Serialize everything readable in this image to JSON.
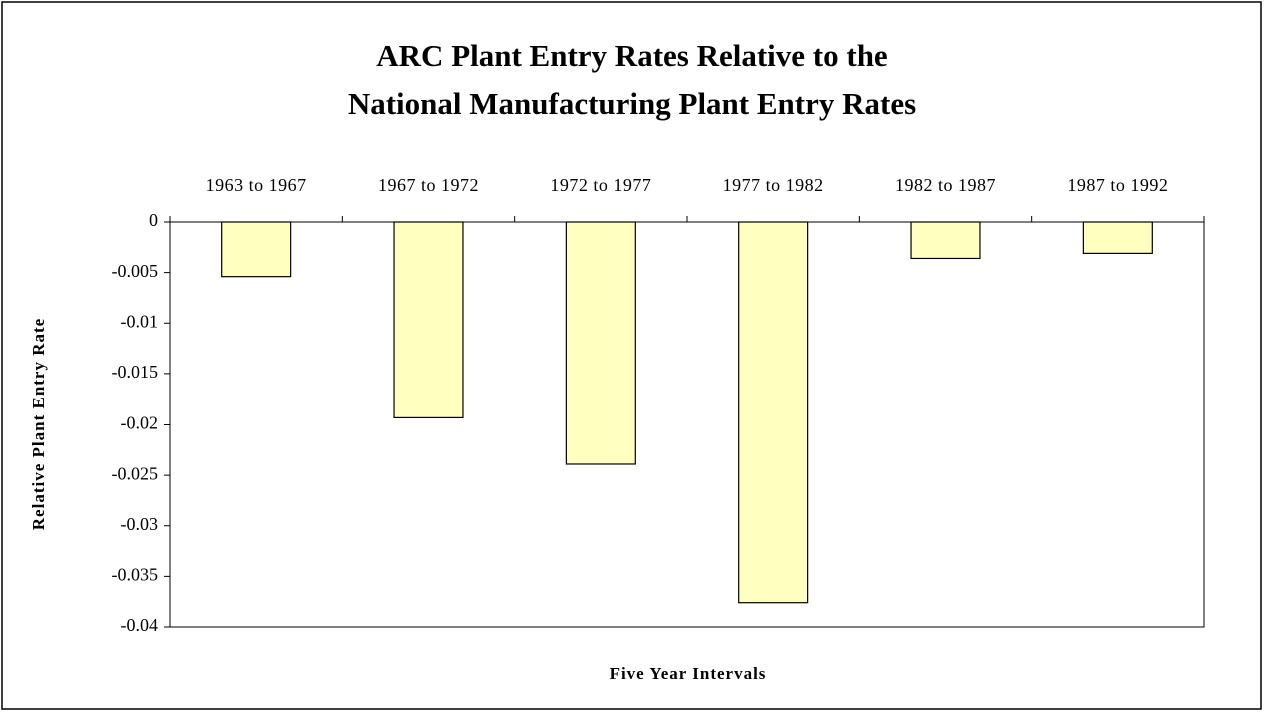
{
  "chart_data": {
    "type": "bar",
    "title": [
      "ARC Plant Entry Rates Relative to the",
      "National Manufacturing Plant Entry Rates"
    ],
    "x_label": "Five Year Intervals",
    "y_label": "Relative Plant Entry Rate",
    "categories": [
      "1963 to 1967",
      "1967 to 1972",
      "1972 to 1977",
      "1977 to 1982",
      "1982 to 1987",
      "1987 to 1992"
    ],
    "values": [
      -0.0054,
      -0.0193,
      -0.0239,
      -0.0376,
      -0.0036,
      -0.0031
    ],
    "color": "#ffffc0",
    "ylim": [
      -0.04,
      0
    ],
    "yticks": [
      0,
      -0.005,
      -0.01,
      -0.015,
      -0.02,
      -0.025,
      -0.03,
      -0.035,
      -0.04
    ],
    "grid": false
  }
}
